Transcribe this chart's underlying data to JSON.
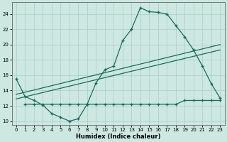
{
  "xlabel": "Humidex (Indice chaleur)",
  "bg_color": "#cce8e0",
  "grid_color": "#aacccc",
  "line_color": "#1a6b5a",
  "xlim": [
    -0.5,
    23.5
  ],
  "ylim": [
    9.5,
    25.5
  ],
  "xticks": [
    0,
    1,
    2,
    3,
    4,
    5,
    6,
    7,
    8,
    9,
    10,
    11,
    12,
    13,
    14,
    15,
    16,
    17,
    18,
    19,
    20,
    21,
    22,
    23
  ],
  "yticks": [
    10,
    12,
    14,
    16,
    18,
    20,
    22,
    24
  ],
  "curve_x": [
    0,
    1,
    2,
    3,
    4,
    5,
    6,
    7,
    8,
    9,
    10,
    11,
    12,
    13,
    14,
    15,
    16,
    17,
    18,
    19,
    20,
    21,
    22,
    23
  ],
  "curve_y": [
    15.5,
    13.2,
    12.7,
    12.1,
    11.0,
    10.5,
    10.0,
    10.3,
    12.2,
    15.0,
    16.7,
    17.2,
    20.5,
    22.0,
    24.8,
    24.3,
    24.2,
    24.0,
    22.5,
    21.0,
    19.3,
    17.2,
    14.9,
    13.0
  ],
  "trend1_x": [
    0,
    23
  ],
  "trend1_y": [
    12.9,
    19.3
  ],
  "trend2_x": [
    0,
    23
  ],
  "trend2_y": [
    13.5,
    20.0
  ],
  "flat_x": [
    1,
    2,
    3,
    4,
    5,
    6,
    7,
    8,
    9,
    10,
    11,
    12,
    13,
    14,
    15,
    16,
    17,
    18,
    19,
    20,
    21,
    22,
    23
  ],
  "flat_y": [
    12.2,
    12.2,
    12.2,
    12.2,
    12.2,
    12.2,
    12.2,
    12.2,
    12.2,
    12.2,
    12.2,
    12.2,
    12.2,
    12.2,
    12.2,
    12.2,
    12.2,
    12.2,
    12.7,
    12.7,
    12.7,
    12.7,
    12.7
  ]
}
